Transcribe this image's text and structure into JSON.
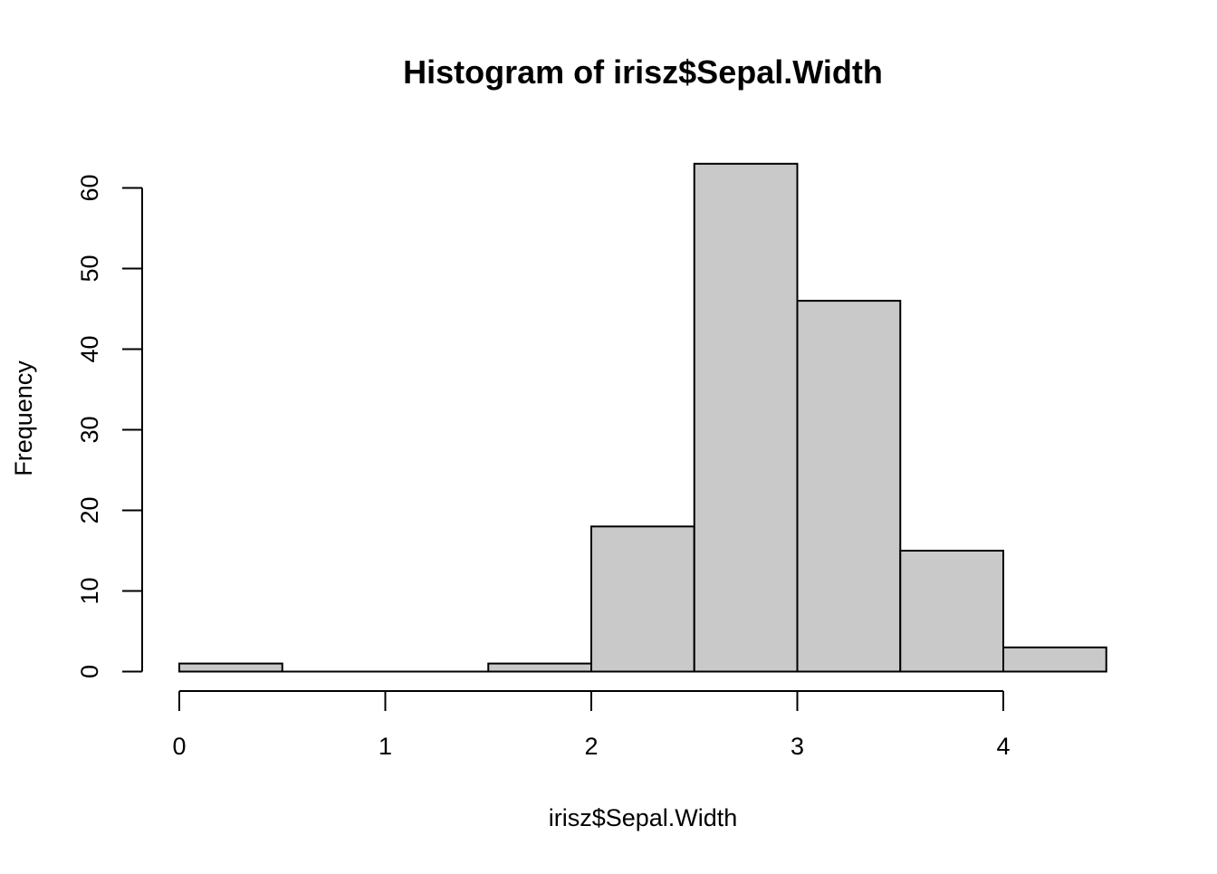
{
  "chart_data": {
    "type": "bar",
    "title": "Histogram of irisz$Sepal.Width",
    "xlabel": "irisz$Sepal.Width",
    "ylabel": "Frequency",
    "bins": [
      {
        "start": 0.0,
        "end": 0.5,
        "count": 1
      },
      {
        "start": 0.5,
        "end": 1.0,
        "count": 0
      },
      {
        "start": 1.0,
        "end": 1.5,
        "count": 0
      },
      {
        "start": 1.5,
        "end": 2.0,
        "count": 1
      },
      {
        "start": 2.0,
        "end": 2.5,
        "count": 18
      },
      {
        "start": 2.5,
        "end": 3.0,
        "count": 63
      },
      {
        "start": 3.0,
        "end": 3.5,
        "count": 46
      },
      {
        "start": 3.5,
        "end": 4.0,
        "count": 15
      },
      {
        "start": 4.0,
        "end": 4.5,
        "count": 3
      }
    ],
    "xlim": [
      0,
      4.5
    ],
    "ylim": [
      0,
      63
    ],
    "x_ticks": [
      0,
      1,
      2,
      3,
      4
    ],
    "x_tick_labels": [
      "0",
      "1",
      "2",
      "3",
      "4"
    ],
    "y_ticks": [
      0,
      10,
      20,
      30,
      40,
      50,
      60
    ],
    "y_tick_labels": [
      "0",
      "10",
      "20",
      "30",
      "40",
      "50",
      "60"
    ],
    "bar_fill": "#c9c9c9",
    "bar_stroke": "#000000",
    "grid": false,
    "legend": "none"
  }
}
